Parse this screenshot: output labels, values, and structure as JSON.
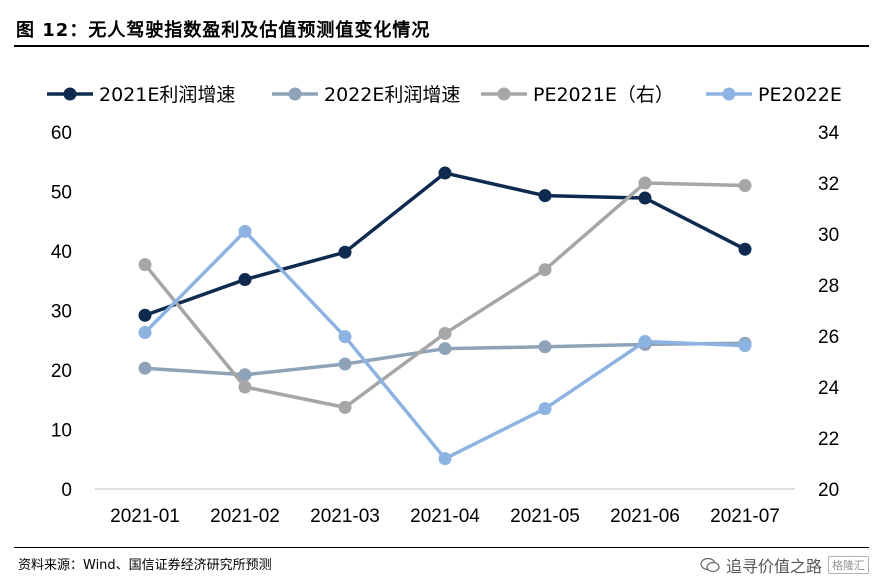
{
  "header": {
    "title": "图 12：无人驾驶指数盈利及估值预测值变化情况"
  },
  "footer": {
    "source": "资料来源：Wind、国信证券经济研究所预测",
    "watermark": "追寻价值之路",
    "watermark_logo": "格隆汇",
    "icon": "wechat-icon"
  },
  "chart_data": {
    "type": "line",
    "categories": [
      "2021-01",
      "2021-02",
      "2021-03",
      "2021-04",
      "2021-05",
      "2021-06",
      "2021-07"
    ],
    "y_left": {
      "ticks": [
        0,
        10,
        20,
        30,
        40,
        50,
        60
      ],
      "min": 0,
      "max": 60
    },
    "y_right": {
      "ticks": [
        20,
        22,
        24,
        26,
        28,
        30,
        32,
        34
      ],
      "min": 20,
      "max": 34
    },
    "grid": false,
    "legend_position": "top",
    "series": [
      {
        "name": "2021E利润增速",
        "axis": "left",
        "color": "#0e2a4f",
        "values": [
          29.2,
          35.2,
          39.8,
          53.1,
          49.3,
          48.9,
          40.3
        ]
      },
      {
        "name": "2022E利润增速",
        "axis": "left",
        "color": "#8fa3b8",
        "values": [
          20.3,
          19.2,
          21.0,
          23.6,
          23.9,
          24.3,
          24.5
        ]
      },
      {
        "name": "PE2021E（右）",
        "axis": "right",
        "color": "#a6a6a6",
        "values": [
          28.8,
          24.0,
          23.2,
          26.1,
          28.6,
          32.0,
          31.9
        ]
      },
      {
        "name": "PE2022E",
        "axis": "left",
        "color": "#8db3e2",
        "values": [
          26.3,
          43.3,
          25.6,
          5.1,
          13.5,
          24.8,
          24.1
        ]
      }
    ]
  }
}
